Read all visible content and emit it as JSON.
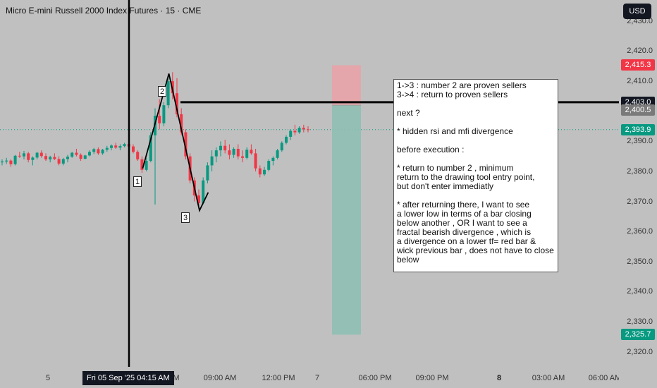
{
  "header": {
    "symbol_title": "Micro E-mini Russell 2000 Index Futures · 15 · CME",
    "currency_button": "USD"
  },
  "price_axis": {
    "ticks": [
      "2,430.0",
      "2,420.0",
      "2,410.0",
      "2,390.0",
      "2,380.0",
      "2,370.0",
      "2,360.0",
      "2,350.0",
      "2,340.0",
      "2,330.0",
      "2,320.0"
    ],
    "badges": [
      {
        "label": "2,415.3",
        "color": "#f23645"
      },
      {
        "label": "2,403.0",
        "color": "#131722"
      },
      {
        "label": "2,400.5",
        "color": "#7a7a7a"
      },
      {
        "label": "2,393.9",
        "color": "#089981"
      },
      {
        "label": "2,325.7",
        "color": "#089981"
      }
    ]
  },
  "time_axis": {
    "ticks": [
      {
        "label": "5",
        "bold": false
      },
      {
        "label": "M",
        "bold": false
      },
      {
        "label": "09:00 AM",
        "bold": false
      },
      {
        "label": "12:00 PM",
        "bold": false
      },
      {
        "label": "7",
        "bold": false
      },
      {
        "label": "06:00 PM",
        "bold": false
      },
      {
        "label": "09:00 PM",
        "bold": false
      },
      {
        "label": "8",
        "bold": true
      },
      {
        "label": "03:00 AM",
        "bold": false
      },
      {
        "label": "06:00 AM",
        "bold": false
      }
    ],
    "crosshair_label": "Fri 05 Sep '25    04:15 AM"
  },
  "annotations": {
    "wave_labels": [
      "1",
      "2",
      "3"
    ],
    "note_lines": [
      "1->3 : number 2 are proven sellers",
      "3->4 : return to proven sellers",
      "",
      "next ?",
      "",
      "* hidden rsi and mfi divergence",
      "",
      "before execution :",
      "",
      "* return to number 2 , minimum",
      "return to the drawing tool entry point,",
      "but don't enter immediatly",
      "",
      "* after returning there, I want to see",
      "a lower low in terms of a bar closing",
      "below another , OR I want to see a",
      "fractal bearish divergence , which is",
      "a divergence on a lower tf= red bar &",
      "wick previous bar , does not have to close",
      "below"
    ]
  },
  "colors": {
    "up": "#089981",
    "down": "#f23645",
    "stop_zone": "#e8a3a8",
    "target_zone": "#8fbfb3"
  },
  "chart_data": {
    "type": "candlestick",
    "symbol": "Micro E-mini Russell 2000 Index Futures",
    "interval": "15",
    "exchange": "CME",
    "price_range": [
      2315,
      2437
    ],
    "levels": {
      "entry": 2403.0,
      "stop": 2415.3,
      "target": 2325.7,
      "last_price": 2393.9,
      "crosshair_price": 2400.5
    },
    "candles": [
      [
        2383.0,
        2384.0,
        2382.0,
        2383.3
      ],
      [
        2383.3,
        2384.5,
        2382.5,
        2383.6
      ],
      [
        2383.6,
        2384.0,
        2381.5,
        2382.4
      ],
      [
        2382.4,
        2385.5,
        2382.0,
        2385.2
      ],
      [
        2385.2,
        2386.5,
        2384.5,
        2385.0
      ],
      [
        2385.0,
        2386.8,
        2384.0,
        2386.0
      ],
      [
        2386.0,
        2386.5,
        2383.0,
        2383.8
      ],
      [
        2383.8,
        2385.0,
        2382.0,
        2384.6
      ],
      [
        2384.6,
        2386.5,
        2384.0,
        2386.2
      ],
      [
        2386.2,
        2387.0,
        2384.5,
        2385.1
      ],
      [
        2385.1,
        2386.0,
        2383.5,
        2384.0
      ],
      [
        2384.0,
        2385.2,
        2383.0,
        2384.8
      ],
      [
        2384.8,
        2386.0,
        2383.8,
        2384.1
      ],
      [
        2384.1,
        2385.0,
        2382.0,
        2382.6
      ],
      [
        2382.6,
        2384.5,
        2382.0,
        2384.1
      ],
      [
        2384.1,
        2385.5,
        2383.0,
        2384.9
      ],
      [
        2384.9,
        2386.5,
        2384.5,
        2386.2
      ],
      [
        2386.2,
        2387.5,
        2385.0,
        2385.5
      ],
      [
        2385.5,
        2386.0,
        2383.5,
        2384.2
      ],
      [
        2384.2,
        2385.5,
        2384.0,
        2385.3
      ],
      [
        2385.3,
        2387.0,
        2385.0,
        2386.5
      ],
      [
        2386.5,
        2387.8,
        2385.8,
        2387.4
      ],
      [
        2387.4,
        2388.0,
        2385.5,
        2386.0
      ],
      [
        2386.0,
        2387.5,
        2385.5,
        2387.2
      ],
      [
        2387.2,
        2388.5,
        2386.5,
        2387.8
      ],
      [
        2387.8,
        2389.0,
        2387.0,
        2388.6
      ],
      [
        2388.6,
        2389.5,
        2387.5,
        2387.9
      ],
      [
        2387.9,
        2389.0,
        2387.0,
        2388.4
      ],
      [
        2388.4,
        2389.5,
        2388.0,
        2389.1
      ],
      [
        2389.1,
        2390.0,
        2388.0,
        2388.3
      ],
      [
        2388.3,
        2389.0,
        2386.0,
        2386.5
      ],
      [
        2386.5,
        2387.0,
        2383.5,
        2384.0
      ],
      [
        2384.0,
        2385.0,
        2379.5,
        2380.5
      ],
      [
        2380.5,
        2384.5,
        2380.0,
        2383.5
      ],
      [
        2383.5,
        2393.0,
        2383.0,
        2392.0
      ],
      [
        2392.0,
        2401.0,
        2369.0,
        2398.5
      ],
      [
        2398.5,
        2404.0,
        2394.0,
        2396.0
      ],
      [
        2396.0,
        2403.0,
        2395.0,
        2402.0
      ],
      [
        2402.0,
        2412.0,
        2401.0,
        2410.0
      ],
      [
        2410.0,
        2413.0,
        2404.0,
        2406.0
      ],
      [
        2406.0,
        2411.0,
        2398.0,
        2399.0
      ],
      [
        2399.0,
        2401.0,
        2392.0,
        2393.0
      ],
      [
        2393.0,
        2394.0,
        2384.0,
        2385.0
      ],
      [
        2385.0,
        2386.0,
        2376.0,
        2377.0
      ],
      [
        2377.0,
        2378.0,
        2370.0,
        2372.0
      ],
      [
        2372.0,
        2374.0,
        2367.5,
        2369.5
      ],
      [
        2369.5,
        2378.0,
        2369.0,
        2377.0
      ],
      [
        2377.0,
        2383.0,
        2376.0,
        2382.0
      ],
      [
        2382.0,
        2387.0,
        2380.0,
        2385.0
      ],
      [
        2385.0,
        2388.0,
        2383.0,
        2387.0
      ],
      [
        2387.0,
        2390.0,
        2385.0,
        2388.5
      ],
      [
        2388.5,
        2390.5,
        2386.0,
        2387.0
      ],
      [
        2387.0,
        2389.0,
        2384.0,
        2385.5
      ],
      [
        2385.5,
        2388.0,
        2384.5,
        2387.5
      ],
      [
        2387.5,
        2389.0,
        2384.0,
        2385.0
      ],
      [
        2385.0,
        2387.0,
        2383.0,
        2384.5
      ],
      [
        2384.5,
        2388.0,
        2384.0,
        2387.2
      ],
      [
        2387.2,
        2389.0,
        2385.5,
        2386.0
      ],
      [
        2386.0,
        2387.5,
        2380.0,
        2381.0
      ],
      [
        2381.0,
        2382.0,
        2378.0,
        2379.0
      ],
      [
        2379.0,
        2381.5,
        2378.5,
        2380.5
      ],
      [
        2380.5,
        2384.0,
        2380.0,
        2383.5
      ],
      [
        2383.5,
        2385.0,
        2382.0,
        2384.5
      ],
      [
        2384.5,
        2387.5,
        2384.0,
        2387.0
      ],
      [
        2387.0,
        2390.0,
        2386.5,
        2389.5
      ],
      [
        2389.5,
        2392.0,
        2389.0,
        2391.5
      ],
      [
        2391.5,
        2394.0,
        2390.5,
        2393.5
      ],
      [
        2393.5,
        2395.5,
        2392.0,
        2393.0
      ],
      [
        2393.0,
        2395.0,
        2392.5,
        2394.5
      ],
      [
        2394.5,
        2395.5,
        2393.0,
        2394.0
      ],
      [
        2394.0,
        2395.0,
        2393.0,
        2393.9
      ]
    ],
    "wave_points": [
      {
        "label": "1",
        "price": 2381.0
      },
      {
        "label": "2",
        "price": 2412.5
      },
      {
        "label": "3",
        "price": 2367.0
      }
    ]
  }
}
